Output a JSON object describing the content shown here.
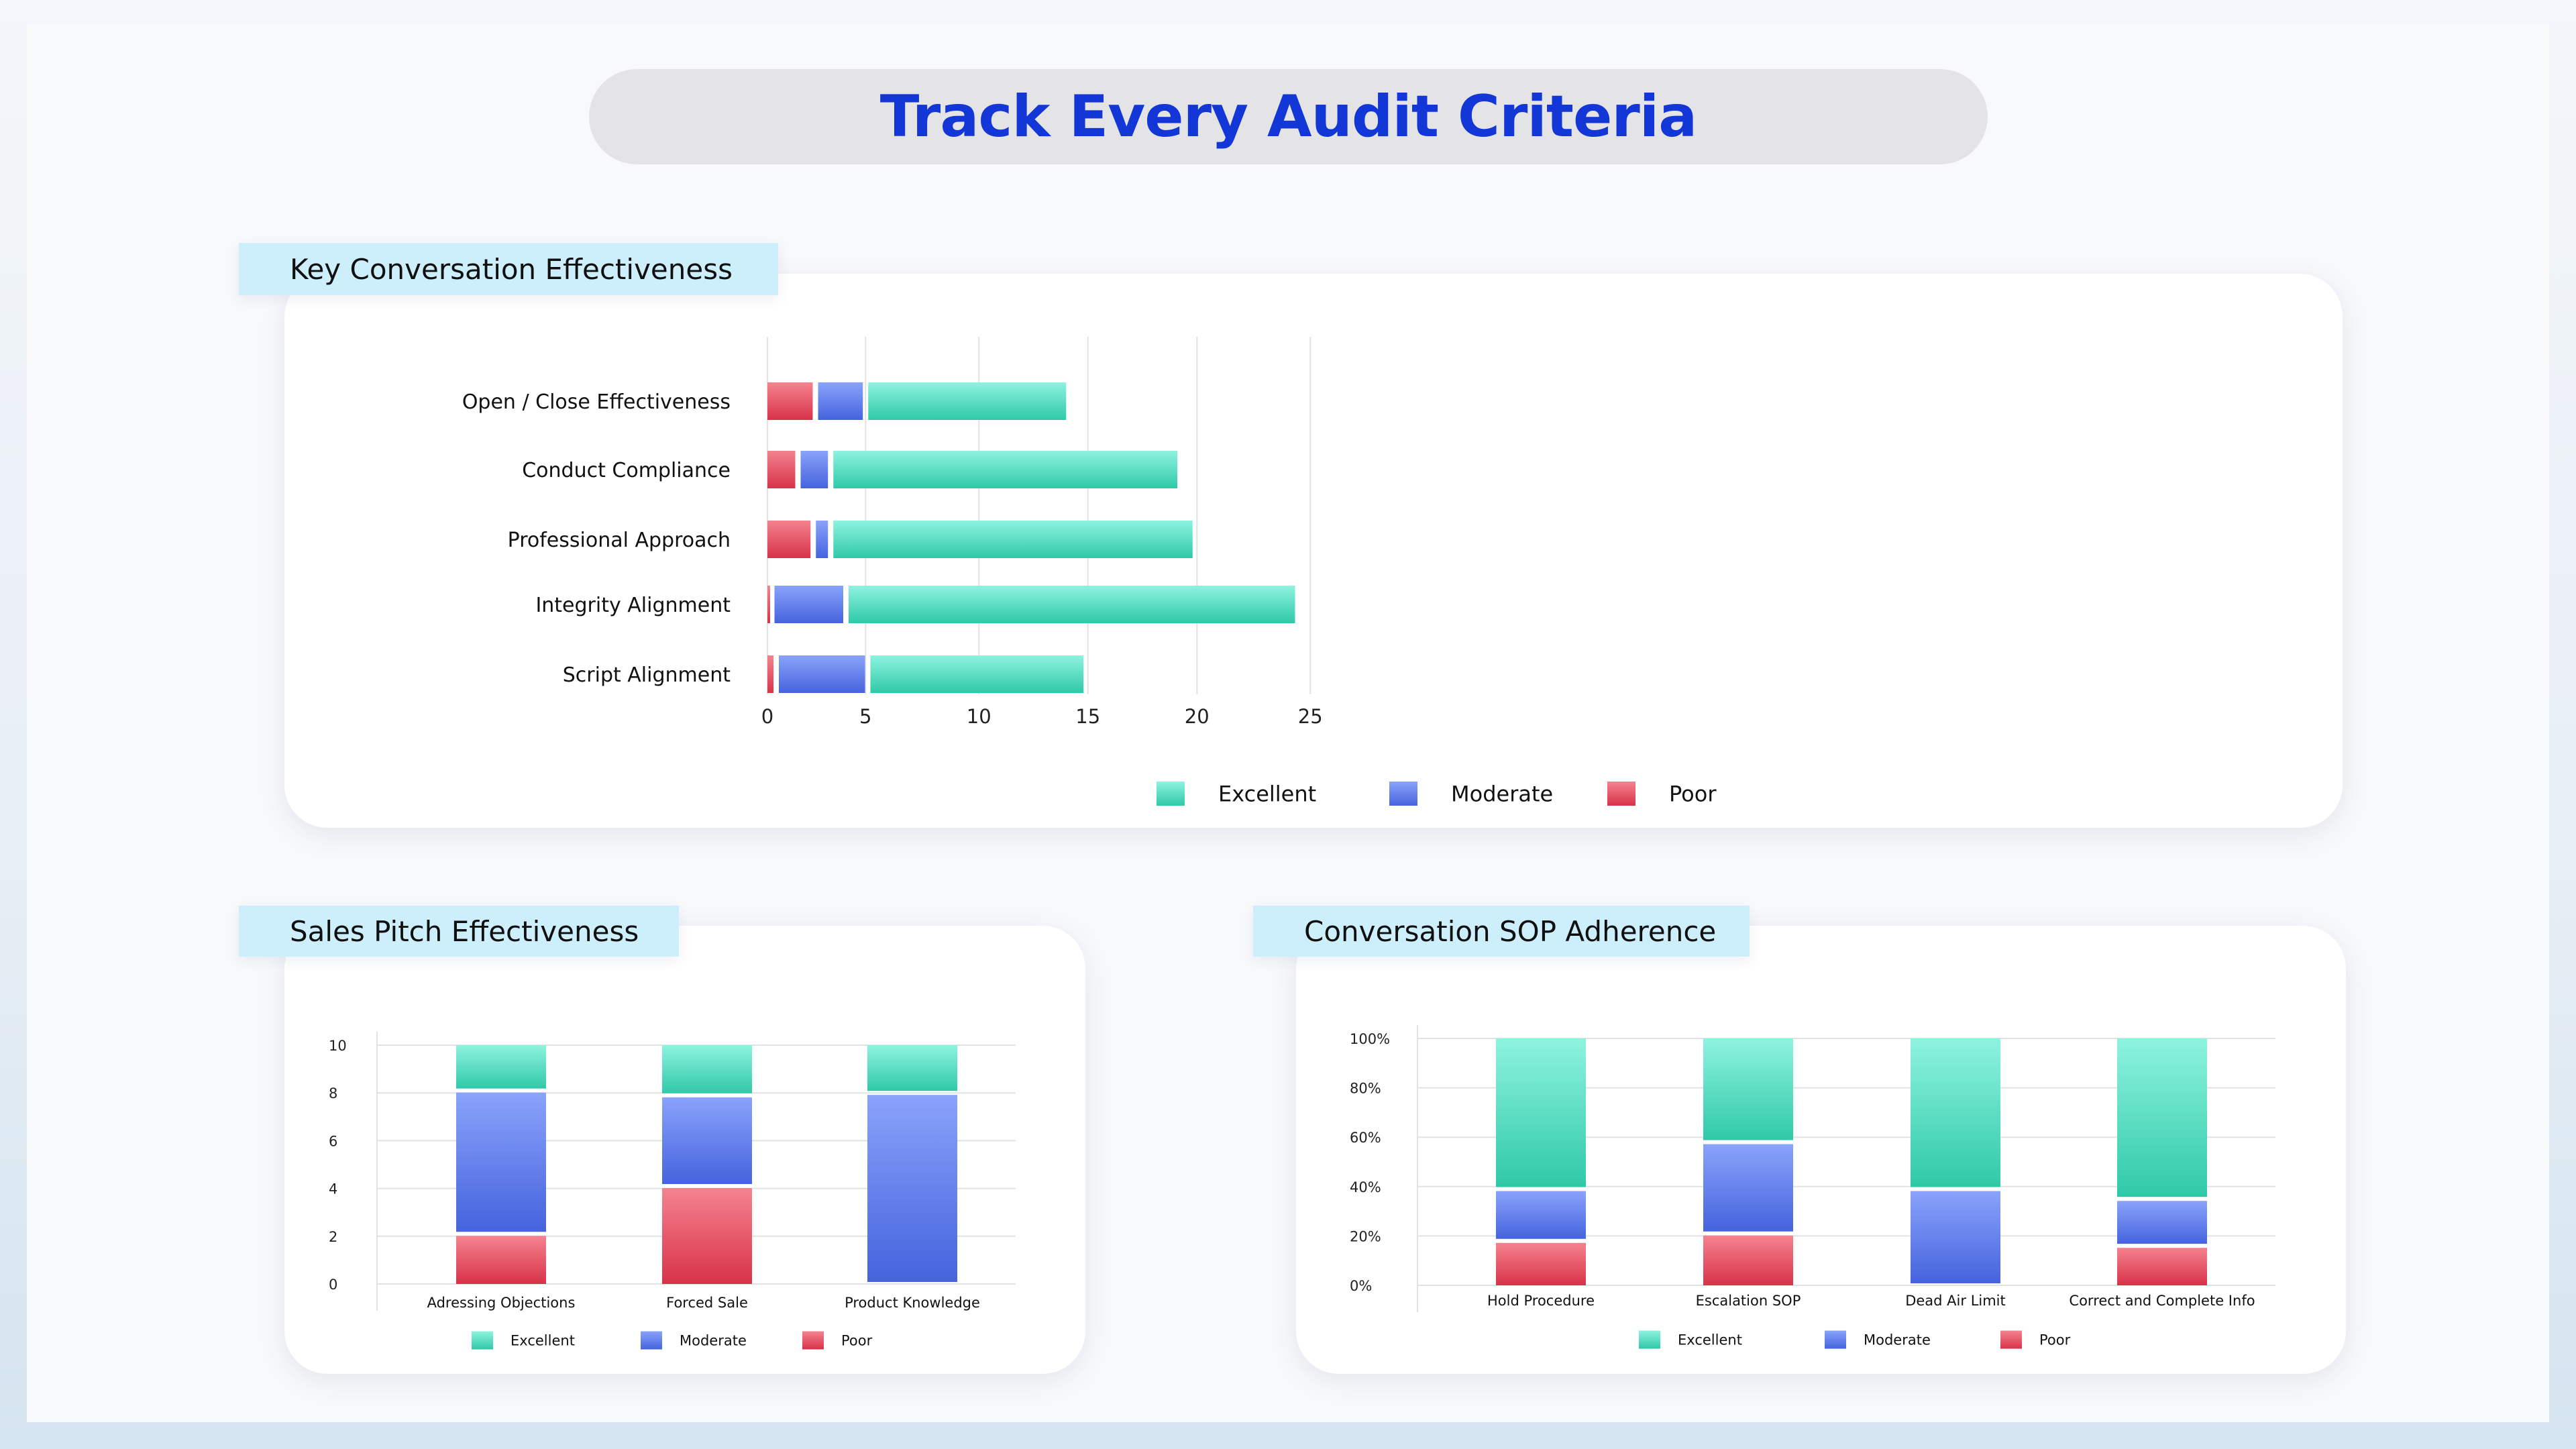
{
  "header": {
    "title": "Track Every Audit Criteria"
  },
  "colors": {
    "excellent": [
      "#8ef3df",
      "#2fc9a8"
    ],
    "moderate": [
      "#8aa3fb",
      "#4563dd"
    ],
    "poor": [
      "#f5838f",
      "#d83249"
    ],
    "grid": "#e2e2e2",
    "title": "#1336d6",
    "tag": "#cdeefb"
  },
  "sections": {
    "key": {
      "label": "Key Conversation Effectiveness"
    },
    "sales": {
      "label": "Sales Pitch Effectiveness"
    },
    "sop": {
      "label": "Conversation SOP Adherence"
    }
  },
  "chart_data": [
    {
      "type": "bar",
      "orientation": "horizontal",
      "stacked": true,
      "title": "Key Conversation Effectiveness",
      "categories": [
        "Open / Close Effectiveness",
        "Conduct Compliance",
        "Professional Approach",
        "Integrity Alignment",
        "Script Alignment"
      ],
      "series": [
        {
          "name": "Poor",
          "values": [
            2.2,
            1.4,
            2.1,
            0.2,
            0.4
          ]
        },
        {
          "name": "Moderate",
          "values": [
            2.3,
            1.5,
            0.8,
            3.4,
            4.2
          ]
        },
        {
          "name": "Excellent",
          "values": [
            9.2,
            15.9,
            16.6,
            20.6,
            9.9
          ]
        }
      ],
      "xlim": [
        0,
        25
      ],
      "xticks": [
        "0",
        "5",
        "10",
        "15",
        "20",
        "25"
      ],
      "xtick_values": [
        0,
        4.5,
        9.7,
        14.7,
        19.7,
        24.9
      ],
      "legend": [
        "Excellent",
        "Moderate",
        "Poor"
      ],
      "legend_position": "bottom-center",
      "grid": true
    },
    {
      "type": "bar",
      "stacked": true,
      "title": "Sales Pitch Effectiveness",
      "categories": [
        "Adressing Objections",
        "Forced Sale",
        "Product Knowledge"
      ],
      "series": [
        {
          "name": "Poor",
          "values": [
            2.1,
            4.1,
            0
          ]
        },
        {
          "name": "Moderate",
          "values": [
            6.0,
            3.8,
            8.0
          ]
        },
        {
          "name": "Excellent",
          "values": [
            1.9,
            2.1,
            2.0
          ]
        }
      ],
      "ylim": [
        0,
        10
      ],
      "yticks": [
        "0",
        "2",
        "4",
        "6",
        "8",
        "10"
      ],
      "legend": [
        "Excellent",
        "Moderate",
        "Poor"
      ],
      "legend_position": "bottom-center",
      "grid": true
    },
    {
      "type": "bar",
      "stacked": true,
      "title": "Conversation SOP Adherence",
      "categories": [
        "Hold Procedure",
        "Escalation SOP",
        "Dead Air Limit",
        "Correct and Complete Info"
      ],
      "series": [
        {
          "name": "Poor",
          "values": [
            18,
            21,
            0,
            16
          ]
        },
        {
          "name": "Moderate",
          "values": [
            21,
            37,
            39,
            19
          ]
        },
        {
          "name": "Excellent",
          "values": [
            61,
            42,
            61,
            65
          ]
        }
      ],
      "ylim": [
        0,
        100
      ],
      "yticks": [
        "0%",
        "20%",
        "40%",
        "60%",
        "80%",
        "100%"
      ],
      "legend": [
        "Excellent",
        "Moderate",
        "Poor"
      ],
      "legend_position": "bottom-center",
      "grid": true
    }
  ]
}
